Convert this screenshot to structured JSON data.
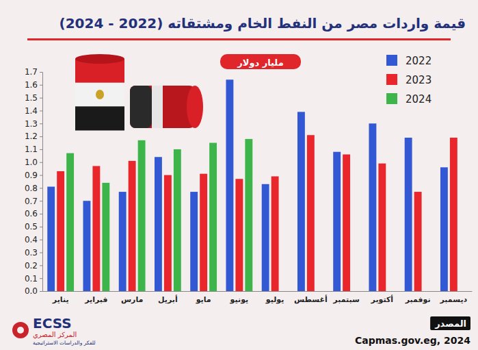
{
  "chart_data": {
    "type": "bar",
    "title": "قيمة واردات مصر من النفط الخام ومشتقاته (2022 - 2024)",
    "subtitle": "مليار دولار",
    "source_label": "المصدر",
    "source": "Capmas.gov.eg, 2024",
    "logo": [
      "ECSS",
      "المركز المصري",
      "للفكر والدراسات الاستراتيجية"
    ],
    "categories": [
      "يناير",
      "فبراير",
      "مارس",
      "أبريل",
      "مايو",
      "يونيو",
      "يوليو",
      "أغسطس",
      "سبتمبر",
      "أكتوبر",
      "نوفمبر",
      "ديسمبر"
    ],
    "series": [
      {
        "name": "2022",
        "color": "#3358d4",
        "values": [
          0.81,
          0.7,
          0.77,
          1.04,
          0.77,
          1.64,
          0.83,
          1.39,
          1.08,
          1.3,
          1.19,
          0.96
        ]
      },
      {
        "name": "2023",
        "color": "#e8262b",
        "values": [
          0.93,
          0.97,
          1.01,
          0.9,
          0.91,
          0.87,
          0.89,
          1.21,
          1.06,
          0.99,
          0.77,
          1.19
        ]
      },
      {
        "name": "2024",
        "color": "#3db54a",
        "values": [
          1.07,
          0.84,
          1.17,
          1.1,
          1.15,
          1.18,
          null,
          null,
          null,
          null,
          null,
          null
        ]
      }
    ],
    "ylim": [
      0,
      1.7
    ],
    "yticks": [
      {
        "value": 0,
        "label": "0.0"
      },
      0.1,
      0.2,
      0.3,
      0.4,
      0.5,
      0.6,
      0.7,
      0.8,
      0.9,
      {
        "value": 1,
        "label": "1.0"
      },
      1.1,
      1.2,
      1.3,
      1.4,
      1.5,
      1.6,
      1.7
    ],
    "grid": false,
    "legend": "top-right"
  }
}
